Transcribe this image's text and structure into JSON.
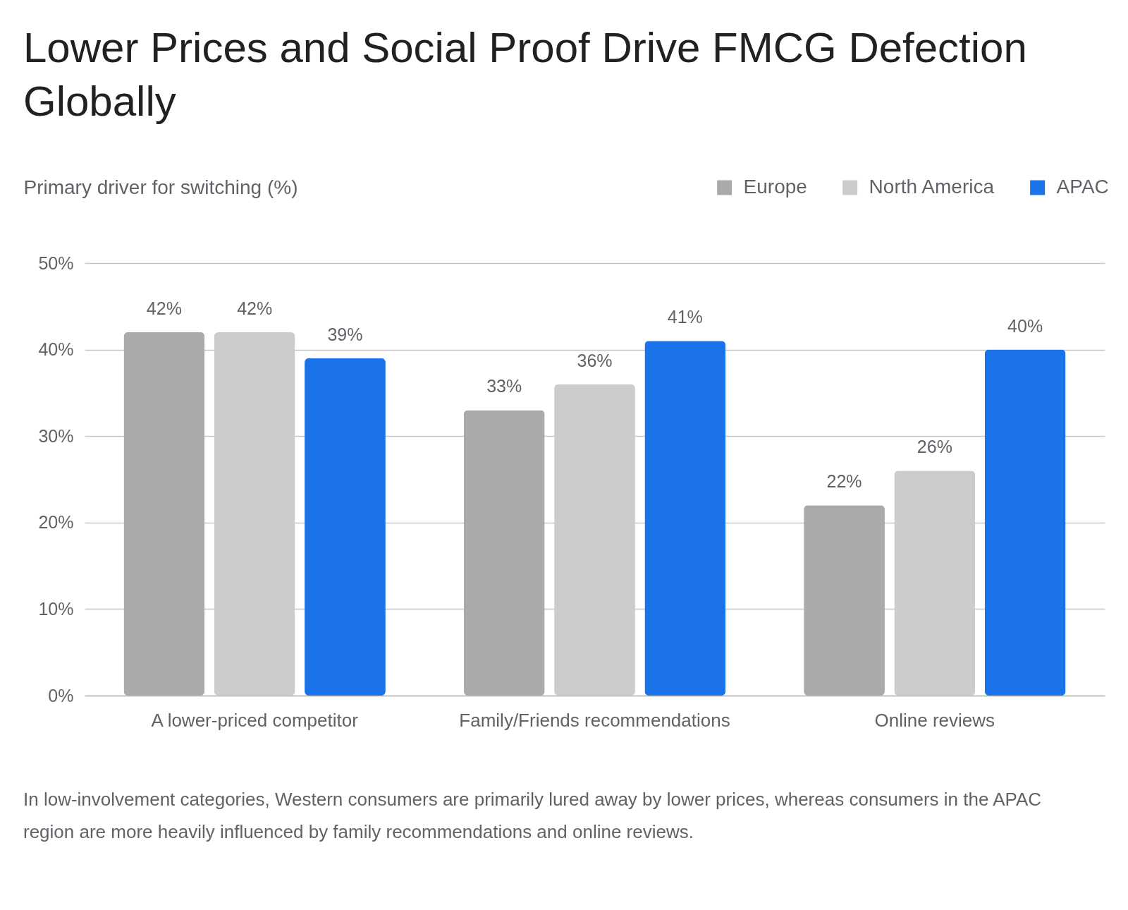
{
  "chart_data": {
    "type": "bar",
    "title": "Lower Prices and Social Proof Drive FMCG Defection Globally",
    "ylabel": "Primary driver for switching (%)",
    "categories": [
      "A lower-priced competitor",
      "Family/Friends recommendations",
      "Online reviews"
    ],
    "series": [
      {
        "name": "Europe",
        "color": "#aaaaaa",
        "values": [
          42,
          33,
          22
        ],
        "value_labels": [
          "42%",
          "33%",
          "22%"
        ]
      },
      {
        "name": "North America",
        "color": "#cccccc",
        "values": [
          42,
          36,
          26
        ],
        "value_labels": [
          "42%",
          "36%",
          "26%"
        ]
      },
      {
        "name": "APAC",
        "color": "#1a73e8",
        "values": [
          39,
          41,
          40
        ],
        "value_labels": [
          "39%",
          "41%",
          "40%"
        ]
      }
    ],
    "ylim": [
      0,
      50
    ],
    "yticks": [
      {
        "value": 0,
        "label": "0%"
      },
      {
        "value": 10,
        "label": "10%"
      },
      {
        "value": 20,
        "label": "20%"
      },
      {
        "value": 30,
        "label": "30%"
      },
      {
        "value": 40,
        "label": "40%"
      },
      {
        "value": 50,
        "label": "50%"
      }
    ],
    "grid": "y",
    "legend": "top right",
    "annotations": [
      "In low-involvement categories, Western consumers are primarily lured away by lower prices, whereas consumers in the APAC region are more heavily influenced by family recommendations and online reviews."
    ]
  }
}
